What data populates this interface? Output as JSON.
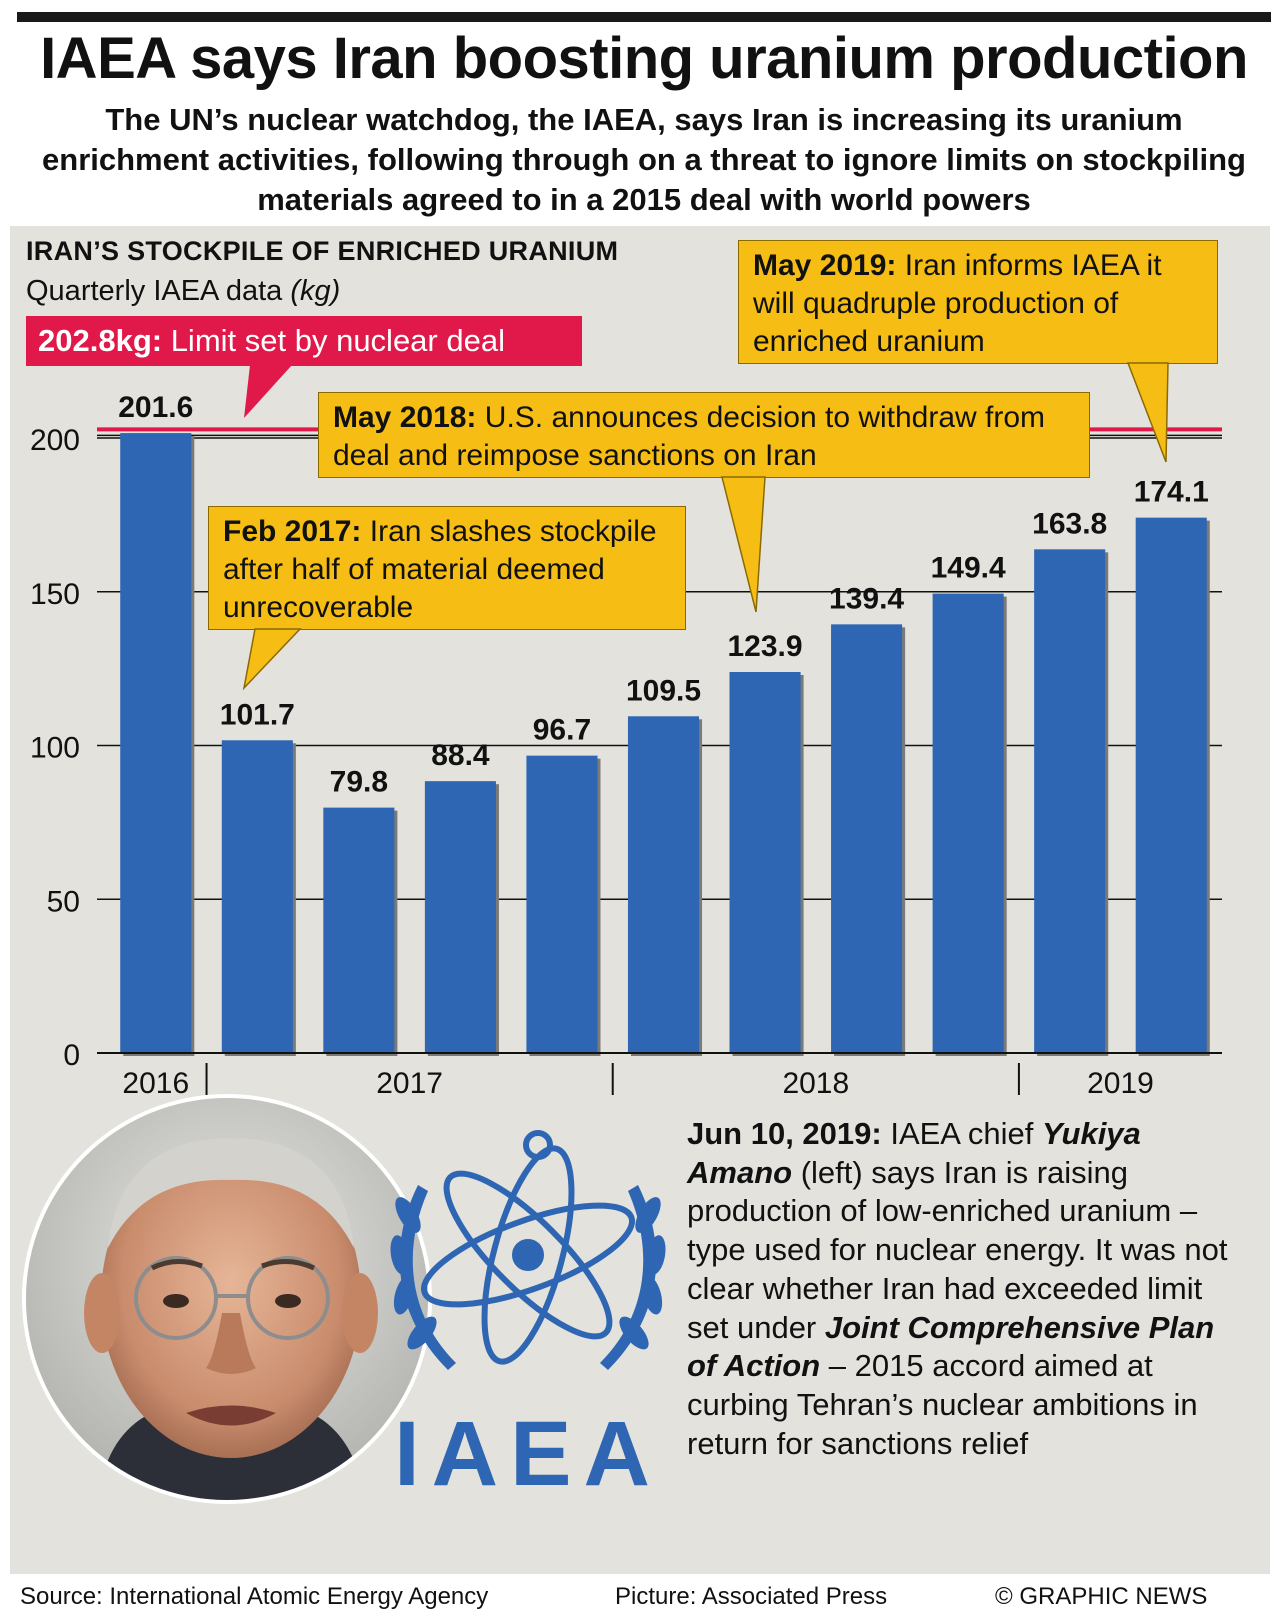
{
  "header": {
    "title": "IAEA says Iran boosting uranium production",
    "subtitle": "The UN’s nuclear watchdog, the IAEA, says Iran is increasing its uranium enrichment activities, following through on a threat to ignore limits on stockpiling materials agreed to in a 2015 deal with world powers"
  },
  "chart_data": {
    "type": "bar",
    "title": "IRAN’S STOCKPILE OF ENRICHED URANIUM",
    "subtitle": "Quarterly IAEA data (kg)",
    "categories": [
      "2016 Q4",
      "2017 Q1",
      "2017 Q2",
      "2017 Q3",
      "2017 Q4",
      "2018 Q1",
      "2018 Q2",
      "2018 Q3",
      "2018 Q4",
      "2019 Q1",
      "2019 Q2"
    ],
    "values": [
      201.6,
      101.7,
      79.8,
      88.4,
      96.7,
      109.5,
      123.9,
      139.4,
      149.4,
      163.8,
      174.1
    ],
    "value_labels": [
      "201.6",
      "101.7",
      "79.8",
      "88.4",
      "96.7",
      "109.5",
      "123.9",
      "139.4",
      "149.4",
      "163.8",
      "174.1"
    ],
    "year_labels": [
      "2016",
      "2017",
      "2018",
      "2019"
    ],
    "y_ticks": [
      "0",
      "50",
      "100",
      "150",
      "200"
    ],
    "ylim": [
      0,
      200
    ],
    "limit_value": 202.8,
    "grid": true,
    "bar_color": "#2e66b3",
    "limit_color": "#e0194a"
  },
  "annotations": {
    "limit": {
      "bold": "202.8kg:",
      "text": " Limit set by nuclear deal"
    },
    "feb2017": {
      "bold": "Feb 2017:",
      "text": " Iran slashes stockpile after half of material deemed unrecoverable"
    },
    "may2018": {
      "bold": "May 2018:",
      "text": " U.S. announces decision to withdraw from deal and reimpose sanctions on Iran"
    },
    "may2019": {
      "bold": "May 2019:",
      "text": " Iran informs IAEA it will quadruple production of enriched uranium"
    }
  },
  "story": {
    "date": "Jun 10, 2019:",
    "t1": " IAEA chief ",
    "name": "Yukiya Amano",
    "t2": " (left) says Iran is raising production of low-enriched uranium – type used for nuclear energy. It was not clear whether Iran had exceeded limit set under ",
    "plan": "Joint Comprehensive Plan of Action",
    "t3": " – 2015 accord aimed at curbing Tehran’s nuclear ambitions in return for sanctions relief"
  },
  "logo": {
    "text": "IAEA",
    "color": "#2e66b3"
  },
  "footer": {
    "source": "Source: International Atomic Energy Agency",
    "picture": "Picture: Associated Press",
    "credit": "© GRAPHIC NEWS"
  }
}
